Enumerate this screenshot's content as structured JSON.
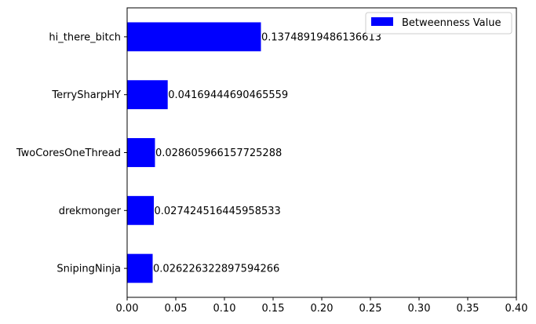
{
  "chart_data": {
    "type": "bar",
    "orientation": "horizontal",
    "categories": [
      "hi_there_bitch",
      "TerrySharpHY",
      "TwoCoresOneThread",
      "drekmonger",
      "SnipingNinja"
    ],
    "series": [
      {
        "name": "Betweenness Value",
        "color": "#0000ff",
        "values": [
          0.13748919486136613,
          0.04169444690465559,
          0.028605966157725288,
          0.027424516445958533,
          0.026226322897594266
        ],
        "labels": [
          "0.13748919486136613",
          "0.04169444690465559",
          "0.028605966157725288",
          "0.027424516445958533",
          "0.026226322897594266"
        ]
      }
    ],
    "xlim": [
      0,
      0.4
    ],
    "xticks": [
      0.0,
      0.05,
      0.1,
      0.15,
      0.2,
      0.25,
      0.3,
      0.35,
      0.4
    ],
    "xtick_labels": [
      "0.00",
      "0.05",
      "0.10",
      "0.15",
      "0.20",
      "0.25",
      "0.30",
      "0.35",
      "0.40"
    ],
    "title": "",
    "xlabel": "",
    "ylabel": "",
    "grid": false,
    "legend": "top-right"
  }
}
